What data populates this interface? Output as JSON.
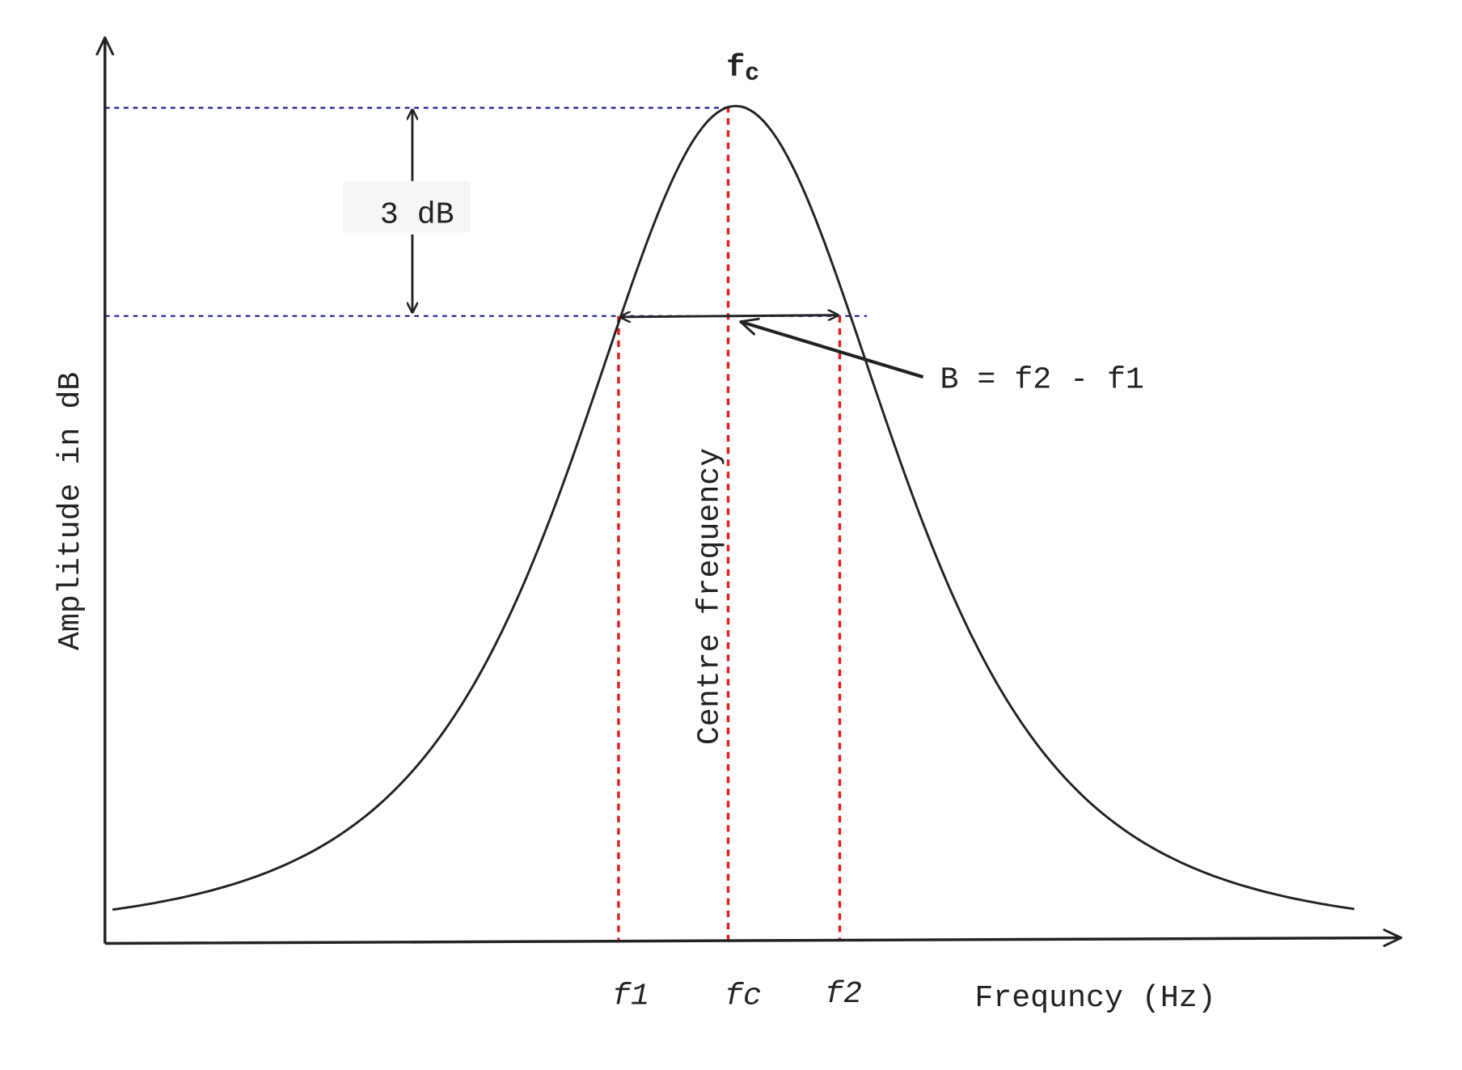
{
  "peak_label": {
    "main": "f",
    "sub": "c"
  },
  "gap_label": "3 dB",
  "bandwidth_label": "B = f2 - f1",
  "centre_label": "Centre frequency",
  "y_axis_label": "Amplitude in dB",
  "x_axis_label": "Frequncy (Hz)",
  "x_markers": [
    "f1",
    "fc",
    "f2"
  ]
}
